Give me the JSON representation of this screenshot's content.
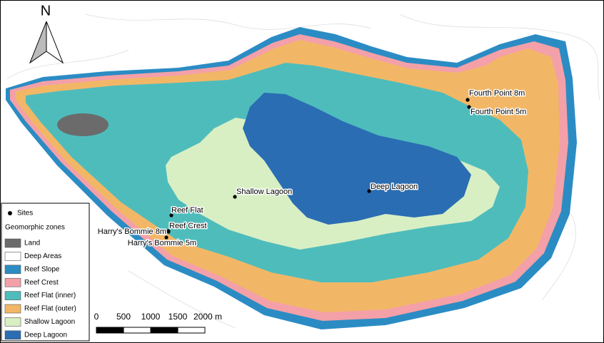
{
  "north_arrow": {
    "label": "N"
  },
  "sites": [
    {
      "label": "Fourth Point 8m"
    },
    {
      "label": "Fourth Point 5m"
    },
    {
      "label": "Deep Lagoon"
    },
    {
      "label": "Shallow Lagoon"
    },
    {
      "label": "Reef Flat"
    },
    {
      "label": "Reef Crest"
    },
    {
      "label": "Harry's Bommie 8m"
    },
    {
      "label": "Harry's Bommie 5m"
    }
  ],
  "legend": {
    "sites_label": "Sites",
    "zones_title": "Geomorphic zones",
    "zones": [
      {
        "label": "Land",
        "color": "#6b6b6b"
      },
      {
        "label": "Deep Areas",
        "color": "#ffffff"
      },
      {
        "label": "Reef Slope",
        "color": "#2b8cc4"
      },
      {
        "label": "Reef Crest",
        "color": "#f4a0a8"
      },
      {
        "label": "Reef Flat (inner)",
        "color": "#4fbcbc"
      },
      {
        "label": "Reef Flat (outer)",
        "color": "#f2b766"
      },
      {
        "label": "Shallow Lagoon",
        "color": "#d8efc4"
      },
      {
        "label": "Deep Lagoon",
        "color": "#2a6db3"
      }
    ]
  },
  "scale_bar": {
    "ticks": [
      0,
      500,
      1000,
      1500,
      {
        "value": 2000,
        "label": "2000 m"
      }
    ]
  }
}
